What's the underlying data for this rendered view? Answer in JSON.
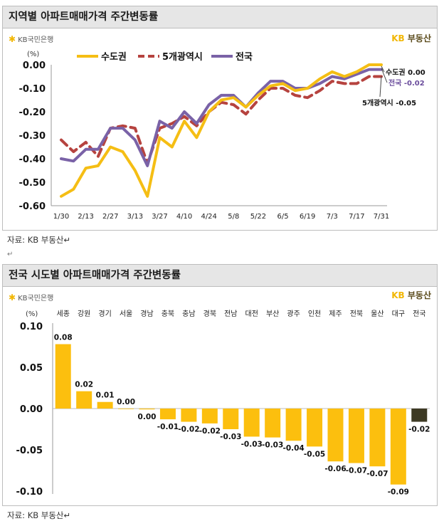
{
  "chart1": {
    "title": "지역별 아파트매매가격 주간변동률",
    "brand_left": "KB국민은행",
    "brand_right_kb": "KB",
    "brand_right_text": "부동산",
    "unit": "(%)",
    "source": "자료: KB 부동산↵",
    "after_mark": "↵",
    "chart_data": {
      "type": "line",
      "title": "지역별 아파트매매가격 주간변동률",
      "xlabel": "",
      "ylabel": "(%)",
      "ylim": [
        -0.6,
        0.0
      ],
      "yticks": [
        "0.00",
        "-0.10",
        "-0.20",
        "-0.30",
        "-0.40",
        "-0.50",
        "-0.60"
      ],
      "xtick_labels": [
        "1/30",
        "2/13",
        "2/27",
        "3/13",
        "3/27",
        "4/10",
        "4/24",
        "5/8",
        "5/22",
        "6/5",
        "6/19",
        "7/3",
        "7/17",
        "7/31"
      ],
      "legend_position": "top",
      "series": [
        {
          "name": "수도권",
          "color": "#f5be14",
          "dash": false,
          "values": [
            -0.56,
            -0.53,
            -0.44,
            -0.43,
            -0.35,
            -0.37,
            -0.45,
            -0.56,
            -0.31,
            -0.35,
            -0.24,
            -0.31,
            -0.2,
            -0.15,
            -0.14,
            -0.18,
            -0.13,
            -0.09,
            -0.08,
            -0.11,
            -0.1,
            -0.06,
            -0.03,
            -0.05,
            -0.03,
            0.0,
            0.0
          ]
        },
        {
          "name": "5개광역시",
          "color": "#b6433f",
          "dash": true,
          "values": [
            -0.32,
            -0.37,
            -0.33,
            -0.39,
            -0.27,
            -0.26,
            -0.27,
            -0.42,
            -0.27,
            -0.25,
            -0.22,
            -0.26,
            -0.2,
            -0.16,
            -0.17,
            -0.21,
            -0.15,
            -0.1,
            -0.1,
            -0.13,
            -0.14,
            -0.11,
            -0.07,
            -0.08,
            -0.08,
            -0.05,
            -0.05
          ]
        },
        {
          "name": "전국",
          "color": "#7a62a7",
          "dash": false,
          "values": [
            -0.4,
            -0.41,
            -0.36,
            -0.36,
            -0.27,
            -0.27,
            -0.32,
            -0.43,
            -0.24,
            -0.27,
            -0.2,
            -0.25,
            -0.17,
            -0.13,
            -0.13,
            -0.18,
            -0.12,
            -0.07,
            -0.07,
            -0.1,
            -0.1,
            -0.08,
            -0.05,
            -0.06,
            -0.04,
            -0.02,
            -0.02
          ]
        }
      ],
      "end_labels": [
        "수도권 0.00",
        "전국 -0.02",
        "5개광역시 -0.05"
      ]
    }
  },
  "chart2": {
    "title": "전국 시도별 아파트매매가격 주간변동률",
    "brand_left": "KB국민은행",
    "brand_right_kb": "KB",
    "brand_right_text": "부동산",
    "unit": "(%)",
    "source": "자료: KB 부동산↵",
    "chart_data": {
      "type": "bar",
      "title": "전국 시도별 아파트매매가격 주간변동률",
      "xlabel": "",
      "ylabel": "(%)",
      "ylim": [
        -0.1,
        0.1
      ],
      "yticks": [
        "0.10",
        "0.05",
        "0.00",
        "-0.05",
        "-0.10"
      ],
      "categories": [
        "세종",
        "강원",
        "경기",
        "서울",
        "경남",
        "충북",
        "충남",
        "경북",
        "전남",
        "대전",
        "부산",
        "광주",
        "인천",
        "제주",
        "전북",
        "울산",
        "대구",
        "전국"
      ],
      "values": [
        0.078,
        0.021,
        0.008,
        0.0,
        -0.001,
        -0.013,
        -0.016,
        -0.018,
        -0.025,
        -0.034,
        -0.035,
        -0.039,
        -0.046,
        -0.064,
        -0.066,
        -0.07,
        -0.092,
        -0.016
      ],
      "labels": [
        "0.08",
        "0.02",
        "0.01",
        "0.00",
        "0.00",
        "-0.01",
        "-0.02",
        "-0.02",
        "-0.03",
        "-0.03",
        "-0.03",
        "-0.04",
        "-0.05",
        "-0.06",
        "-0.07",
        "-0.07",
        "-0.09",
        "-0.02"
      ],
      "colors": {
        "region": "#fcbf0e",
        "national": "#3d3a24"
      }
    }
  }
}
